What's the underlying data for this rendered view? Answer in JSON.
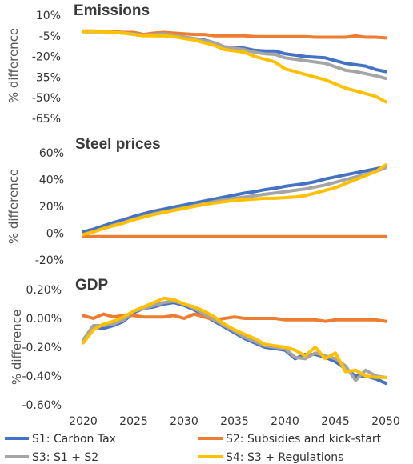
{
  "chart_data": [
    {
      "type": "line",
      "title": "Emissions",
      "ylabel": "% difference",
      "ylim": [
        -65,
        10
      ],
      "yticks": [
        "10%",
        "-5%",
        "-20%",
        "-35%",
        "-50%",
        "-65%"
      ],
      "x": [
        2020,
        2021,
        2022,
        2023,
        2024,
        2025,
        2026,
        2027,
        2028,
        2029,
        2030,
        2031,
        2032,
        2033,
        2034,
        2035,
        2036,
        2037,
        2038,
        2039,
        2040,
        2041,
        2042,
        2043,
        2044,
        2045,
        2046,
        2047,
        2048,
        2049,
        2050
      ],
      "series": [
        {
          "name": "S1: Carbon Tax",
          "color": "#4472C4",
          "values": [
            -2,
            -2,
            -2,
            -2.5,
            -3,
            -3.5,
            -4,
            -4,
            -4,
            -5,
            -6,
            -7,
            -8,
            -10,
            -13,
            -13.5,
            -14,
            -15.5,
            -16,
            -16,
            -18,
            -19,
            -20,
            -20.5,
            -21,
            -23,
            -25,
            -26,
            -27,
            -29.5,
            -31
          ]
        },
        {
          "name": "S2: Subsidies and kick-start",
          "color": "#ED7D31",
          "values": [
            -1.5,
            -1.5,
            -2,
            -2,
            -2.5,
            -2.5,
            -4,
            -3,
            -2.5,
            -3,
            -3.5,
            -4,
            -4,
            -5,
            -5,
            -5,
            -5,
            -5.5,
            -5.5,
            -5.5,
            -5.5,
            -5.5,
            -5.5,
            -6,
            -6,
            -6,
            -6,
            -5,
            -6,
            -6,
            -6.5
          ]
        },
        {
          "name": "S3: S1 + S2",
          "color": "#A5A5A5",
          "values": [
            -2,
            -2,
            -2,
            -2.5,
            -3,
            -3.5,
            -4.5,
            -4,
            -3.5,
            -4.5,
            -6,
            -7,
            -8.5,
            -10,
            -13,
            -14,
            -15,
            -17,
            -18,
            -18.5,
            -21,
            -22,
            -23,
            -24,
            -25,
            -27.5,
            -30,
            -31,
            -32.5,
            -34,
            -36
          ]
        },
        {
          "name": "S4: S3 + Regulations",
          "color": "#FFC000",
          "values": [
            -2,
            -2,
            -2,
            -2.5,
            -3,
            -4,
            -5,
            -5,
            -5,
            -5.5,
            -7,
            -8,
            -10,
            -12,
            -15,
            -16,
            -17,
            -20,
            -22,
            -24,
            -29,
            -31,
            -33,
            -35,
            -37,
            -40,
            -43,
            -45,
            -47,
            -49,
            -53
          ]
        }
      ]
    },
    {
      "type": "line",
      "title": "Steel prices",
      "ylabel": "% difference",
      "ylim": [
        -20,
        60
      ],
      "yticks": [
        "60%",
        "40%",
        "20%",
        "0%",
        "-20%"
      ],
      "x": [
        2020,
        2021,
        2022,
        2023,
        2024,
        2025,
        2026,
        2027,
        2028,
        2029,
        2030,
        2031,
        2032,
        2033,
        2034,
        2035,
        2036,
        2037,
        2038,
        2039,
        2040,
        2041,
        2042,
        2043,
        2044,
        2045,
        2046,
        2047,
        2048,
        2049,
        2050
      ],
      "series": [
        {
          "name": "S1: Carbon Tax",
          "color": "#4472C4",
          "values": [
            1,
            3,
            5.5,
            8,
            10,
            12.5,
            14.5,
            16.5,
            18,
            19.5,
            21,
            22.5,
            24,
            25.5,
            27,
            28.5,
            30,
            31,
            32.5,
            33.5,
            35,
            36,
            37,
            38.5,
            40.5,
            42,
            43.5,
            45,
            46.5,
            48,
            49.5
          ]
        },
        {
          "name": "S2: Subsidies and kick-start",
          "color": "#ED7D31",
          "values": [
            -2.5,
            -2.5,
            -2.5,
            -2.5,
            -2.5,
            -2.5,
            -2.5,
            -2.5,
            -2.5,
            -2.5,
            -2.5,
            -2.5,
            -2.5,
            -2.5,
            -2.5,
            -2.5,
            -2.5,
            -2.5,
            -2.5,
            -2.5,
            -2.5,
            -2.5,
            -2.5,
            -2.5,
            -2.5,
            -2.5,
            -2.5,
            -2.5,
            -2.5,
            -2.5,
            -2.5
          ]
        },
        {
          "name": "S3: S1 + S2",
          "color": "#A5A5A5",
          "values": [
            -1,
            1,
            3.5,
            6,
            8,
            10.5,
            12.5,
            14.5,
            16,
            17.5,
            19,
            20.5,
            22,
            23.5,
            25,
            26,
            27,
            28,
            29,
            30,
            31,
            32,
            33,
            34.5,
            36,
            38,
            40,
            42,
            44,
            46,
            49
          ]
        },
        {
          "name": "S4: S3 + Regulations",
          "color": "#FFC000",
          "values": [
            -1,
            1,
            3.5,
            5.5,
            7.5,
            10,
            12,
            14,
            15.5,
            17,
            18.5,
            20,
            21.5,
            22.5,
            23.5,
            24.5,
            25,
            25.5,
            26,
            26,
            26.5,
            27,
            28,
            30,
            32,
            34,
            37,
            40,
            43,
            46,
            51
          ]
        }
      ]
    },
    {
      "type": "line",
      "title": "GDP",
      "ylabel": "% difference",
      "ylim": [
        -0.6,
        0.2
      ],
      "yticks": [
        "0.20%",
        "0.00%",
        "-0.20%",
        "-0.40%",
        "-0.60%"
      ],
      "xticks": [
        "2020",
        "2025",
        "2030",
        "2035",
        "2040",
        "2045",
        "2050"
      ],
      "x": [
        2020,
        2021,
        2022,
        2023,
        2024,
        2025,
        2026,
        2027,
        2028,
        2029,
        2030,
        2031,
        2032,
        2033,
        2034,
        2035,
        2036,
        2037,
        2038,
        2039,
        2040,
        2041,
        2042,
        2043,
        2044,
        2045,
        2046,
        2047,
        2048,
        2049,
        2050
      ],
      "series": [
        {
          "name": "S1: Carbon Tax",
          "color": "#4472C4",
          "values": [
            -0.16,
            -0.06,
            -0.07,
            -0.05,
            -0.02,
            0.04,
            0.07,
            0.08,
            0.1,
            0.11,
            0.09,
            0.06,
            0.02,
            -0.02,
            -0.06,
            -0.1,
            -0.14,
            -0.17,
            -0.2,
            -0.21,
            -0.22,
            -0.28,
            -0.25,
            -0.25,
            -0.27,
            -0.3,
            -0.35,
            -0.4,
            -0.4,
            -0.42,
            -0.45
          ]
        },
        {
          "name": "S2: Subsidies and kick-start",
          "color": "#ED7D31",
          "values": [
            0.02,
            0,
            0.03,
            0.01,
            0.02,
            0.02,
            0.01,
            0.01,
            0.01,
            0.02,
            0,
            0.03,
            0.01,
            -0.01,
            0,
            0.01,
            0,
            0,
            0,
            0,
            -0.01,
            -0.01,
            -0.01,
            -0.01,
            -0.02,
            -0.01,
            -0.01,
            -0.01,
            -0.01,
            -0.01,
            -0.02
          ]
        },
        {
          "name": "S3: S1 + S2",
          "color": "#A5A5A5",
          "values": [
            -0.15,
            -0.05,
            -0.05,
            -0.04,
            -0.01,
            0.05,
            0.07,
            0.09,
            0.11,
            0.12,
            0.1,
            0.07,
            0.03,
            -0.01,
            -0.05,
            -0.09,
            -0.13,
            -0.16,
            -0.19,
            -0.2,
            -0.21,
            -0.27,
            -0.28,
            -0.24,
            -0.26,
            -0.28,
            -0.33,
            -0.43,
            -0.36,
            -0.4,
            -0.41
          ]
        },
        {
          "name": "S4: S3 + Regulations",
          "color": "#FFC000",
          "values": [
            -0.17,
            -0.08,
            -0.04,
            -0.02,
            0.01,
            0.05,
            0.08,
            0.11,
            0.14,
            0.13,
            0.1,
            0.08,
            0.05,
            0.01,
            -0.04,
            -0.08,
            -0.11,
            -0.14,
            -0.18,
            -0.19,
            -0.2,
            -0.22,
            -0.26,
            -0.2,
            -0.28,
            -0.24,
            -0.37,
            -0.36,
            -0.4,
            -0.41,
            -0.41
          ]
        }
      ]
    }
  ],
  "legend": [
    {
      "label": "S1: Carbon Tax",
      "color": "#4472C4"
    },
    {
      "label": "S2: Subsidies and kick-start",
      "color": "#ED7D31"
    },
    {
      "label": "S3: S1 + S2",
      "color": "#A5A5A5"
    },
    {
      "label": "S4: S3 + Regulations",
      "color": "#FFC000"
    }
  ]
}
